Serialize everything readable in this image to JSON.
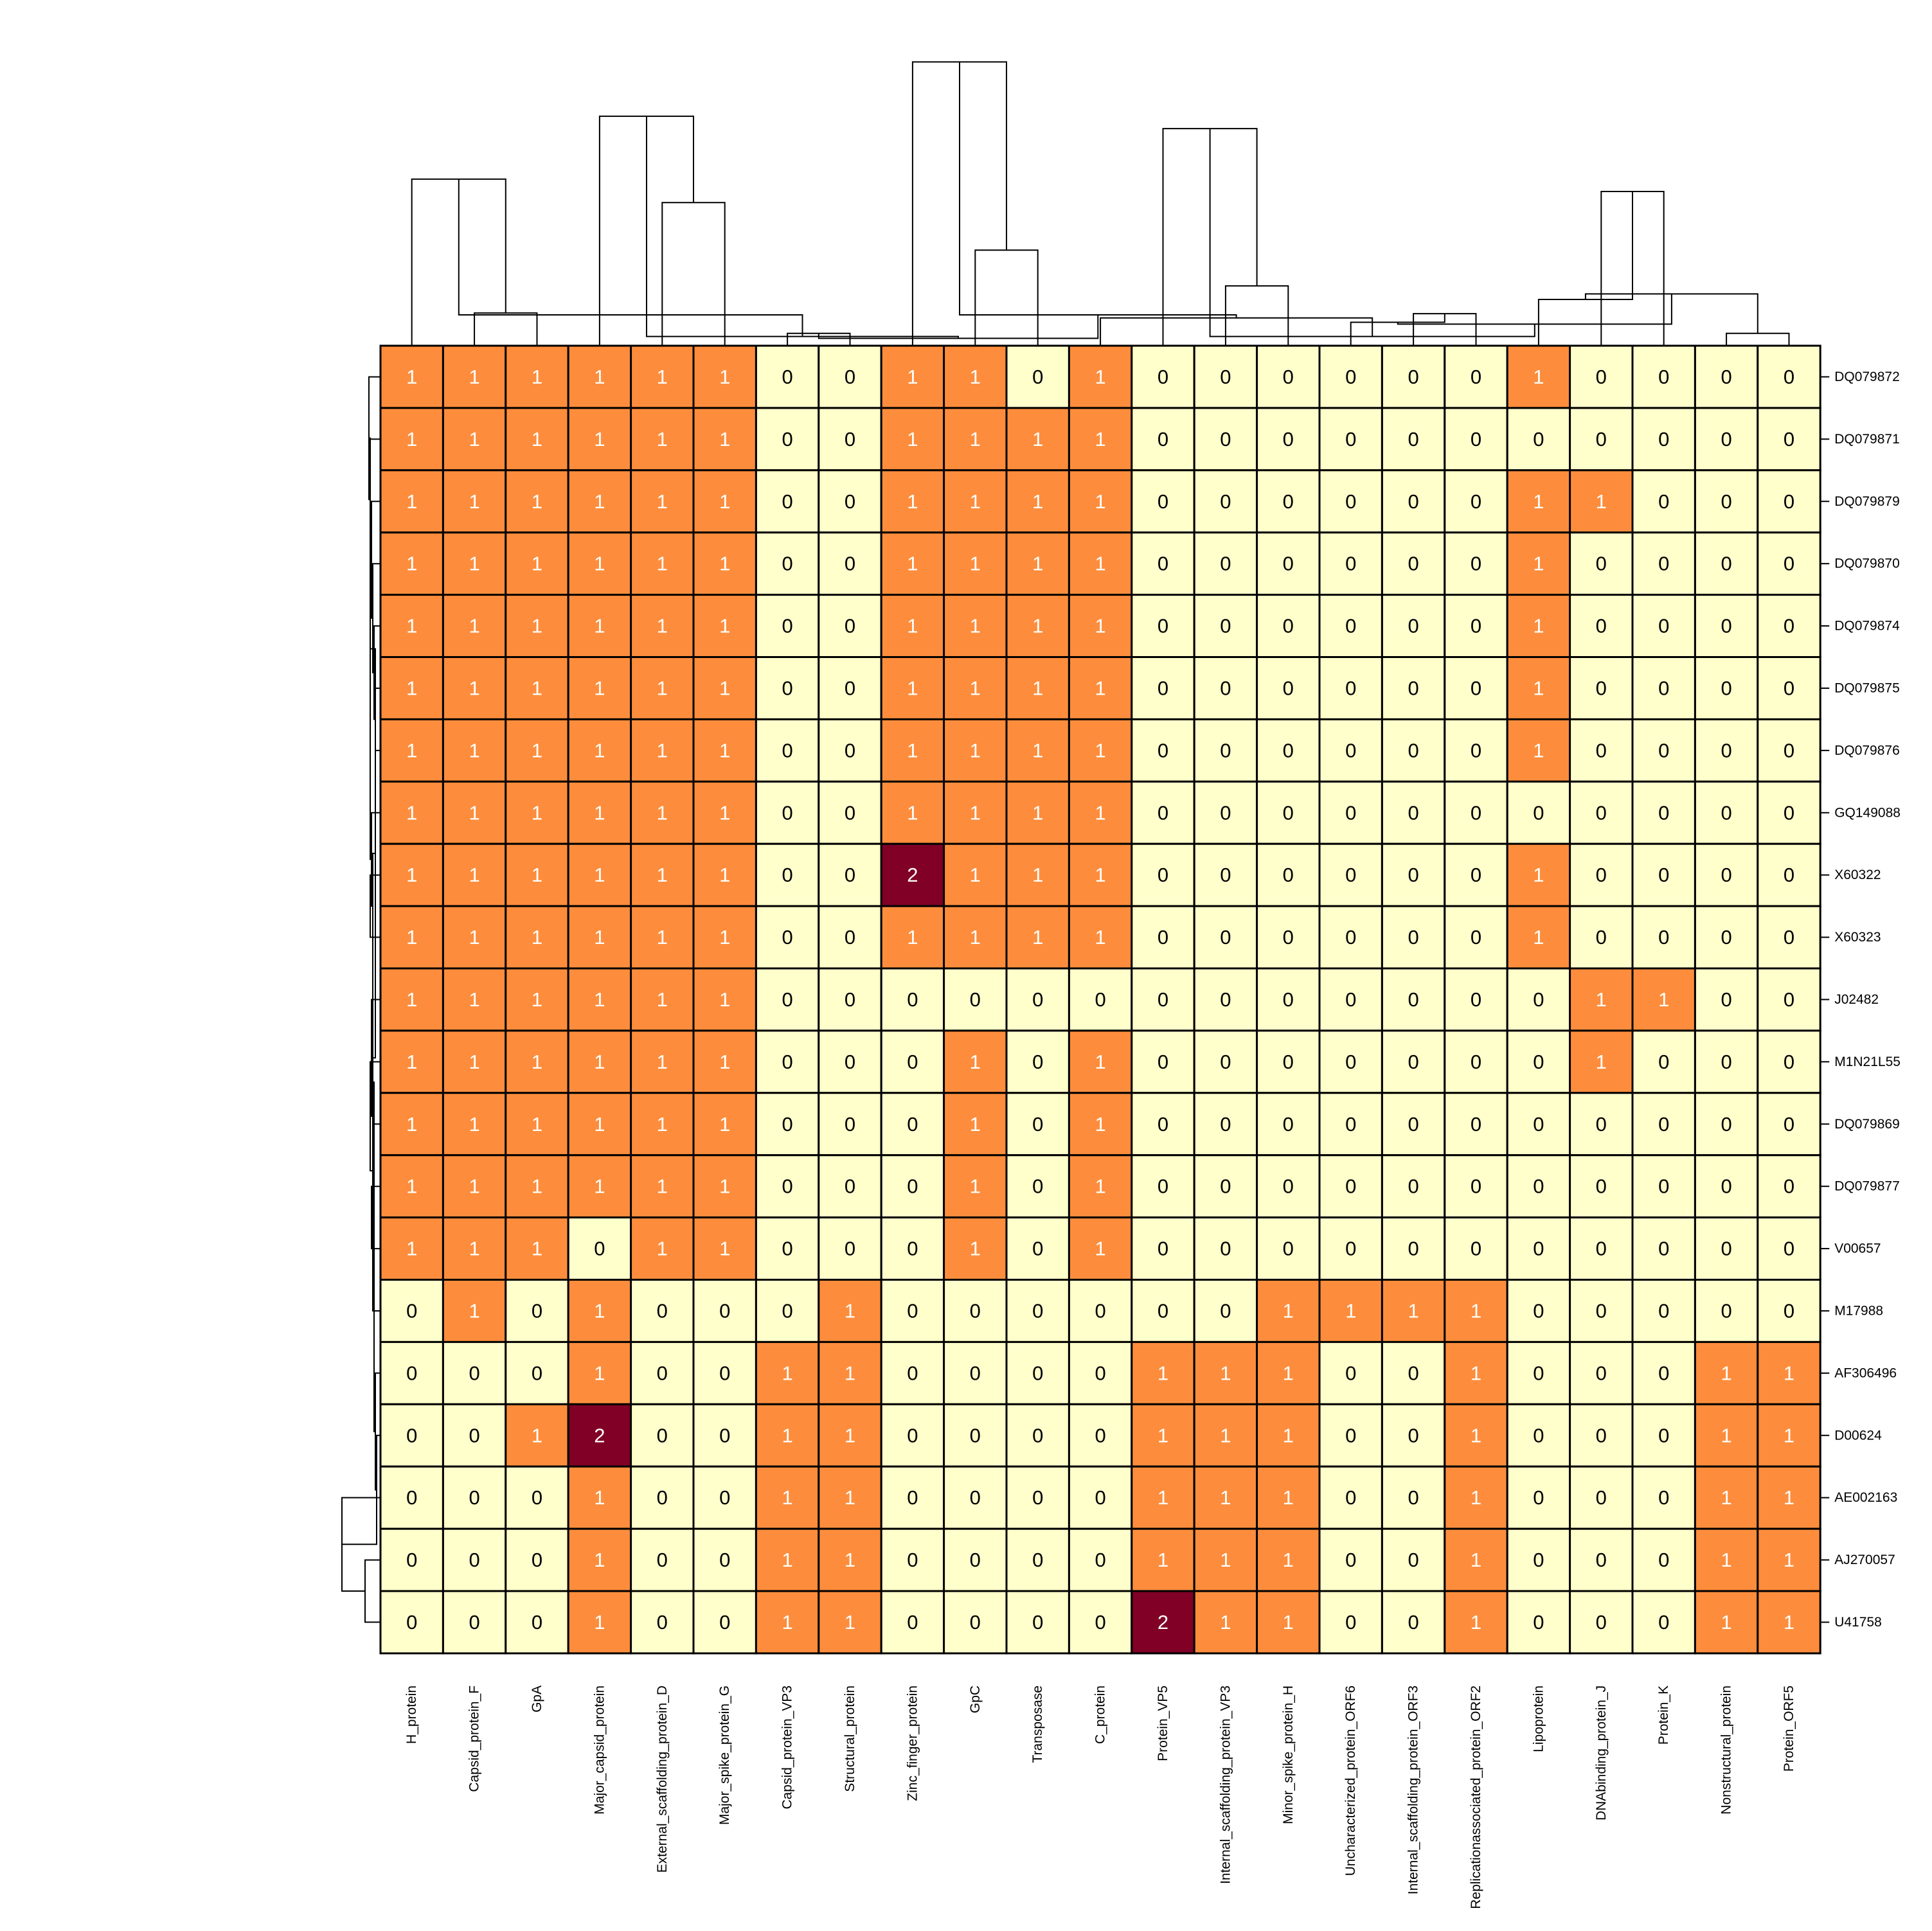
{
  "chart_data": {
    "type": "heatmap",
    "columns": [
      "H_protein",
      "Capsid_protein_F",
      "GpA",
      "Major_capsid_protein",
      "External_scaffolding_protein_D",
      "Major_spike_protein_G",
      "Capsid_protein_VP3",
      "Structural_protein",
      "Zinc_finger_protein",
      "GpC",
      "Transposase",
      "C_protein",
      "Protein_VP5",
      "Internal_scaffolding_protein_VP3",
      "Minor_spike_protein_H",
      "Uncharacterized_protein_ORF6",
      "Internal_scaffolding_protein_ORF3",
      "Replicationassociated_protein_ORF2",
      "Lipoprotein",
      "DNAbinding_protein_J",
      "Protein_K",
      "Nonstructural_protein",
      "Protein_ORF5"
    ],
    "rows": [
      "DQ079872",
      "DQ079871",
      "DQ079879",
      "DQ079870",
      "DQ079874",
      "DQ079875",
      "DQ079876",
      "GQ149088",
      "X60322",
      "X60323",
      "J02482",
      "M1N21L55",
      "DQ079869",
      "DQ079877",
      "V00657",
      "M17988",
      "AF306496",
      "D00624",
      "AE002163",
      "AJ270057",
      "U41758"
    ],
    "values": [
      [
        1,
        1,
        1,
        1,
        1,
        1,
        0,
        0,
        1,
        1,
        0,
        1,
        0,
        0,
        0,
        0,
        0,
        0,
        1,
        0,
        0,
        0,
        0
      ],
      [
        1,
        1,
        1,
        1,
        1,
        1,
        0,
        0,
        1,
        1,
        1,
        1,
        0,
        0,
        0,
        0,
        0,
        0,
        0,
        0,
        0,
        0,
        0
      ],
      [
        1,
        1,
        1,
        1,
        1,
        1,
        0,
        0,
        1,
        1,
        1,
        1,
        0,
        0,
        0,
        0,
        0,
        0,
        1,
        1,
        0,
        0,
        0
      ],
      [
        1,
        1,
        1,
        1,
        1,
        1,
        0,
        0,
        1,
        1,
        1,
        1,
        0,
        0,
        0,
        0,
        0,
        0,
        1,
        0,
        0,
        0,
        0
      ],
      [
        1,
        1,
        1,
        1,
        1,
        1,
        0,
        0,
        1,
        1,
        1,
        1,
        0,
        0,
        0,
        0,
        0,
        0,
        1,
        0,
        0,
        0,
        0
      ],
      [
        1,
        1,
        1,
        1,
        1,
        1,
        0,
        0,
        1,
        1,
        1,
        1,
        0,
        0,
        0,
        0,
        0,
        0,
        1,
        0,
        0,
        0,
        0
      ],
      [
        1,
        1,
        1,
        1,
        1,
        1,
        0,
        0,
        1,
        1,
        1,
        1,
        0,
        0,
        0,
        0,
        0,
        0,
        1,
        0,
        0,
        0,
        0
      ],
      [
        1,
        1,
        1,
        1,
        1,
        1,
        0,
        0,
        1,
        1,
        1,
        1,
        0,
        0,
        0,
        0,
        0,
        0,
        0,
        0,
        0,
        0,
        0
      ],
      [
        1,
        1,
        1,
        1,
        1,
        1,
        0,
        0,
        2,
        1,
        1,
        1,
        0,
        0,
        0,
        0,
        0,
        0,
        1,
        0,
        0,
        0,
        0
      ],
      [
        1,
        1,
        1,
        1,
        1,
        1,
        0,
        0,
        1,
        1,
        1,
        1,
        0,
        0,
        0,
        0,
        0,
        0,
        1,
        0,
        0,
        0,
        0
      ],
      [
        1,
        1,
        1,
        1,
        1,
        1,
        0,
        0,
        0,
        0,
        0,
        0,
        0,
        0,
        0,
        0,
        0,
        0,
        0,
        1,
        1,
        0,
        0
      ],
      [
        1,
        1,
        1,
        1,
        1,
        1,
        0,
        0,
        0,
        1,
        0,
        1,
        0,
        0,
        0,
        0,
        0,
        0,
        0,
        1,
        0,
        0,
        0
      ],
      [
        1,
        1,
        1,
        1,
        1,
        1,
        0,
        0,
        0,
        1,
        0,
        1,
        0,
        0,
        0,
        0,
        0,
        0,
        0,
        0,
        0,
        0,
        0
      ],
      [
        1,
        1,
        1,
        1,
        1,
        1,
        0,
        0,
        0,
        1,
        0,
        1,
        0,
        0,
        0,
        0,
        0,
        0,
        0,
        0,
        0,
        0,
        0
      ],
      [
        1,
        1,
        1,
        0,
        1,
        1,
        0,
        0,
        0,
        1,
        0,
        1,
        0,
        0,
        0,
        0,
        0,
        0,
        0,
        0,
        0,
        0,
        0
      ],
      [
        0,
        1,
        0,
        1,
        0,
        0,
        0,
        1,
        0,
        0,
        0,
        0,
        0,
        0,
        1,
        1,
        1,
        1,
        0,
        0,
        0,
        0,
        0
      ],
      [
        0,
        0,
        0,
        1,
        0,
        0,
        1,
        1,
        0,
        0,
        0,
        0,
        1,
        1,
        1,
        0,
        0,
        1,
        0,
        0,
        0,
        1,
        1
      ],
      [
        0,
        0,
        1,
        2,
        0,
        0,
        1,
        1,
        0,
        0,
        0,
        0,
        1,
        1,
        1,
        0,
        0,
        1,
        0,
        0,
        0,
        1,
        1
      ],
      [
        0,
        0,
        0,
        1,
        0,
        0,
        1,
        1,
        0,
        0,
        0,
        0,
        1,
        1,
        1,
        0,
        0,
        1,
        0,
        0,
        0,
        1,
        1
      ],
      [
        0,
        0,
        0,
        1,
        0,
        0,
        1,
        1,
        0,
        0,
        0,
        0,
        1,
        1,
        1,
        0,
        0,
        1,
        0,
        0,
        0,
        1,
        1
      ],
      [
        0,
        0,
        0,
        1,
        0,
        0,
        1,
        1,
        0,
        0,
        0,
        0,
        2,
        1,
        1,
        0,
        0,
        1,
        0,
        0,
        0,
        1,
        1
      ]
    ],
    "colors": {
      "0": "#FFFFCC",
      "1": "#FD8D3C",
      "2": "#800026"
    },
    "text_colors": {
      "0": "#000000",
      "1": "#FFFFFF",
      "2": "#FFFFFF"
    },
    "legend": "none",
    "row_dendrogram": "left",
    "column_dendrogram": "top"
  }
}
